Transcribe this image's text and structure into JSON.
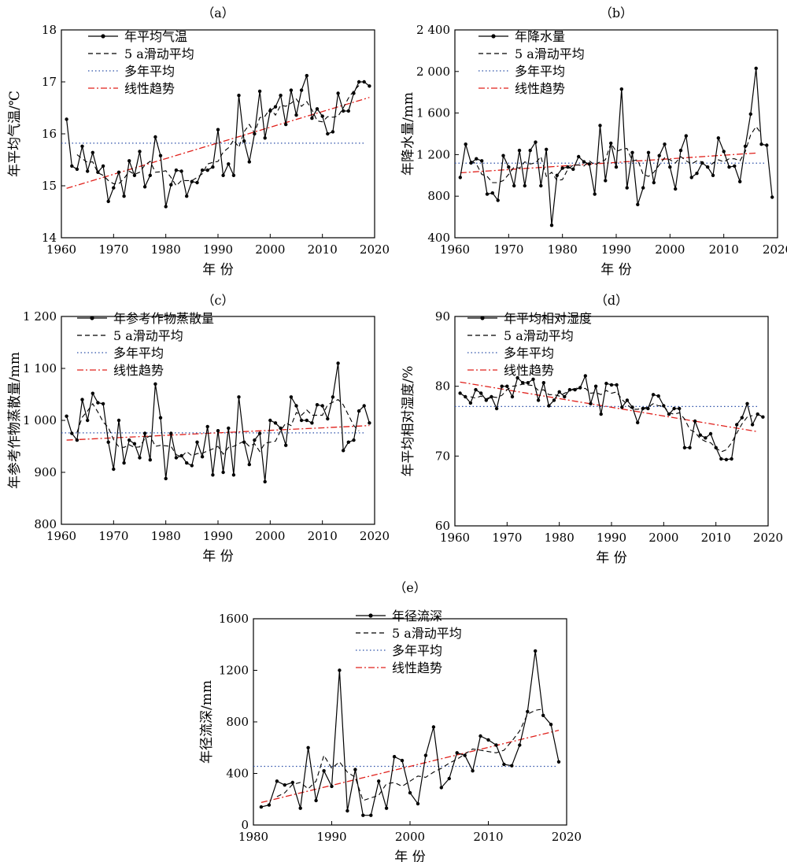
{
  "series_styles": {
    "observed": {
      "color": "#000000"
    },
    "moving": {
      "color": "#000000"
    },
    "mean": {
      "color": "#2b4fa8"
    },
    "trend": {
      "color": "#e0201b"
    }
  },
  "chart_data": [
    {
      "type": "line",
      "title": "（a）",
      "xlabel": "年 份",
      "ylabel": "年平均气温/℃",
      "xlim": [
        1960,
        2020
      ],
      "ylim": [
        14,
        18
      ],
      "xticks": [
        1960,
        1970,
        1980,
        1990,
        2000,
        2010,
        2020
      ],
      "yticks": [
        14,
        15,
        16,
        17,
        18
      ],
      "ytick_labels": [
        "14",
        "15",
        "16",
        "17",
        "18"
      ],
      "legend": [
        "年平均气温",
        "5 a滑动平均",
        "多年平均",
        "线性趋势"
      ],
      "x": [
        1961,
        1962,
        1963,
        1964,
        1965,
        1966,
        1967,
        1968,
        1969,
        1970,
        1971,
        1972,
        1973,
        1974,
        1975,
        1976,
        1977,
        1978,
        1979,
        1980,
        1981,
        1982,
        1983,
        1984,
        1985,
        1986,
        1987,
        1988,
        1989,
        1990,
        1991,
        1992,
        1993,
        1994,
        1995,
        1996,
        1997,
        1998,
        1999,
        2000,
        2001,
        2002,
        2003,
        2004,
        2005,
        2006,
        2007,
        2008,
        2009,
        2010,
        2011,
        2012,
        2013,
        2014,
        2015,
        2016,
        2017,
        2018,
        2019
      ],
      "values": [
        16.28,
        15.38,
        15.32,
        15.76,
        15.28,
        15.64,
        15.26,
        15.38,
        14.7,
        14.96,
        15.26,
        14.8,
        15.48,
        15.2,
        15.66,
        14.98,
        15.2,
        15.94,
        15.58,
        14.6,
        15.02,
        15.3,
        15.28,
        14.8,
        15.08,
        15.06,
        15.3,
        15.3,
        15.36,
        16.08,
        15.2,
        15.42,
        15.2,
        16.74,
        15.86,
        15.46,
        16.0,
        16.82,
        15.92,
        16.44,
        16.52,
        16.74,
        16.18,
        16.84,
        16.36,
        16.84,
        17.12,
        16.3,
        16.48,
        16.34,
        16.0,
        16.04,
        16.78,
        16.44,
        16.44,
        16.78,
        17.0,
        17.0,
        16.92
      ],
      "moving_x": [
        1963,
        1964,
        1965,
        1966,
        1967,
        1968,
        1969,
        1970,
        1971,
        1972,
        1973,
        1974,
        1975,
        1976,
        1977,
        1978,
        1979,
        1980,
        1981,
        1982,
        1983,
        1984,
        1985,
        1986,
        1987,
        1988,
        1989,
        1990,
        1991,
        1992,
        1993,
        1994,
        1995,
        1996,
        1997,
        1998,
        1999,
        2000,
        2001,
        2002,
        2003,
        2004,
        2005,
        2006,
        2007,
        2008,
        2009,
        2010,
        2011,
        2012,
        2013,
        2014,
        2015,
        2016,
        2017
      ],
      "moving_values": [
        15.6,
        15.52,
        15.45,
        15.46,
        15.25,
        15.2,
        15.1,
        15.04,
        15.04,
        15.14,
        15.28,
        15.22,
        15.26,
        15.4,
        15.47,
        15.26,
        15.27,
        15.29,
        15.16,
        15.0,
        15.1,
        15.1,
        15.1,
        15.16,
        15.23,
        15.42,
        15.45,
        15.47,
        15.65,
        15.73,
        15.88,
        15.74,
        16.04,
        16.18,
        16.02,
        16.31,
        16.34,
        16.49,
        16.36,
        16.55,
        16.53,
        16.59,
        16.67,
        16.53,
        16.62,
        16.46,
        16.25,
        16.23,
        16.33,
        16.32,
        16.34,
        16.5,
        16.69,
        16.83,
        16.93
      ],
      "mean": 15.82,
      "trend": [
        [
          1961,
          14.95
        ],
        [
          2019,
          16.7
        ]
      ]
    },
    {
      "type": "line",
      "title": "（b）",
      "xlabel": "年 份",
      "ylabel": "年降水量/mm",
      "xlim": [
        1960,
        2020
      ],
      "ylim": [
        400,
        2400
      ],
      "xticks": [
        1960,
        1970,
        1980,
        1990,
        2000,
        2010,
        2020
      ],
      "yticks": [
        400,
        800,
        1200,
        1600,
        2000,
        2400
      ],
      "ytick_labels": [
        "400",
        "800",
        "1 200",
        "1 600",
        "2 000",
        "2 400"
      ],
      "legend": [
        "年降水量",
        "5 a滑动平均",
        "多年平均",
        "线性趋势"
      ],
      "x": [
        1961,
        1962,
        1963,
        1964,
        1965,
        1966,
        1967,
        1968,
        1969,
        1970,
        1971,
        1972,
        1973,
        1974,
        1975,
        1976,
        1977,
        1978,
        1979,
        1980,
        1981,
        1982,
        1983,
        1984,
        1985,
        1986,
        1987,
        1988,
        1989,
        1990,
        1991,
        1992,
        1993,
        1994,
        1995,
        1996,
        1997,
        1998,
        1999,
        2000,
        2001,
        2002,
        2003,
        2004,
        2005,
        2006,
        2007,
        2008,
        2009,
        2010,
        2011,
        2012,
        2013,
        2014,
        2015,
        2016,
        2017,
        2018,
        2019
      ],
      "values": [
        980,
        1300,
        1120,
        1160,
        1140,
        820,
        830,
        760,
        1190,
        1080,
        900,
        1240,
        900,
        1240,
        1320,
        900,
        1250,
        520,
        1000,
        1070,
        1080,
        1060,
        1180,
        1130,
        1110,
        820,
        1480,
        950,
        1310,
        1080,
        1830,
        880,
        1220,
        720,
        880,
        1220,
        930,
        1190,
        1300,
        1080,
        870,
        1240,
        1380,
        980,
        1020,
        1120,
        1080,
        1000,
        1360,
        1230,
        1080,
        1090,
        940,
        1280,
        1590,
        2030,
        1300,
        1290,
        790
      ],
      "moving_x": [
        1963,
        1964,
        1965,
        1966,
        1967,
        1968,
        1969,
        1970,
        1971,
        1972,
        1973,
        1974,
        1975,
        1976,
        1977,
        1978,
        1979,
        1980,
        1981,
        1982,
        1983,
        1984,
        1985,
        1986,
        1987,
        1988,
        1989,
        1990,
        1991,
        1992,
        1993,
        1994,
        1995,
        1996,
        1997,
        1998,
        1999,
        2000,
        2001,
        2002,
        2003,
        2004,
        2005,
        2006,
        2007,
        2008,
        2009,
        2010,
        2011,
        2012,
        2013,
        2014,
        2015,
        2016,
        2017
      ],
      "moving_values": [
        1140,
        1110,
        1010,
        990,
        930,
        930,
        950,
        1010,
        1080,
        1070,
        1130,
        1110,
        1120,
        1180,
        990,
        1030,
        950,
        960,
        1060,
        1100,
        1100,
        1090,
        1140,
        1100,
        1130,
        1150,
        1310,
        1230,
        1250,
        1260,
        1140,
        1150,
        1010,
        990,
        1030,
        1100,
        1170,
        1150,
        1120,
        1180,
        1140,
        1110,
        1140,
        1130,
        1070,
        1120,
        1150,
        1130,
        1160,
        1160,
        1140,
        1230,
        1390,
        1470,
        1400
      ],
      "mean": 1118,
      "trend": [
        [
          1961,
          1025
        ],
        [
          2016,
          1215
        ]
      ]
    },
    {
      "type": "line",
      "title": "（c）",
      "xlabel": "年 份",
      "ylabel": "年参考作物蒸散量/mm",
      "xlim": [
        1960,
        2020
      ],
      "ylim": [
        800,
        1200
      ],
      "xticks": [
        1960,
        1970,
        1980,
        1990,
        2000,
        2010,
        2020
      ],
      "yticks": [
        800,
        900,
        1000,
        1100,
        1200
      ],
      "ytick_labels": [
        "800",
        "900",
        "1 000",
        "1 100",
        "1 200"
      ],
      "legend": [
        "年参考作物蒸散量",
        "5 a滑动平均",
        "多年平均",
        "线性趋势"
      ],
      "x": [
        1961,
        1962,
        1963,
        1964,
        1965,
        1966,
        1967,
        1968,
        1969,
        1970,
        1971,
        1972,
        1973,
        1974,
        1975,
        1976,
        1977,
        1978,
        1979,
        1980,
        1981,
        1982,
        1983,
        1984,
        1985,
        1986,
        1987,
        1988,
        1989,
        1990,
        1991,
        1992,
        1993,
        1994,
        1995,
        1996,
        1997,
        1998,
        1999,
        2000,
        2001,
        2002,
        2003,
        2004,
        2005,
        2006,
        2007,
        2008,
        2009,
        2010,
        2011,
        2012,
        2013,
        2014,
        2015,
        2016,
        2017,
        2018,
        2019
      ],
      "values": [
        1008,
        975,
        962,
        1040,
        1000,
        1052,
        1034,
        1032,
        958,
        906,
        1000,
        918,
        962,
        955,
        928,
        975,
        924,
        1070,
        1005,
        888,
        975,
        928,
        932,
        918,
        913,
        958,
        930,
        988,
        895,
        980,
        900,
        985,
        895,
        1045,
        958,
        915,
        962,
        975,
        882,
        1000,
        995,
        985,
        952,
        1045,
        1028,
        1000,
        1000,
        995,
        1030,
        1028,
        1003,
        1045,
        1110,
        942,
        958,
        962,
        1018,
        1028,
        995
      ],
      "moving_x": [
        1963,
        1964,
        1965,
        1966,
        1967,
        1968,
        1969,
        1970,
        1971,
        1972,
        1973,
        1974,
        1975,
        1976,
        1977,
        1978,
        1979,
        1980,
        1981,
        1982,
        1983,
        1984,
        1985,
        1986,
        1987,
        1988,
        1989,
        1990,
        1991,
        1992,
        1993,
        1994,
        1995,
        1996,
        1997,
        1998,
        1999,
        2000,
        2001,
        2002,
        2003,
        2004,
        2005,
        2006,
        2007,
        2008,
        2009,
        2010,
        2011,
        2012,
        2013,
        2014,
        2015,
        2016,
        2017
      ],
      "moving_values": [
        977,
        1006,
        1018,
        1032,
        1016,
        997,
        986,
        963,
        949,
        948,
        953,
        948,
        949,
        965,
        970,
        950,
        952,
        951,
        950,
        934,
        930,
        940,
        932,
        936,
        937,
        941,
        945,
        950,
        935,
        948,
        950,
        955,
        960,
        950,
        955,
        940,
        956,
        958,
        960,
        980,
        995,
        990,
        1015,
        1010,
        1020,
        1010,
        1010,
        1010,
        1030,
        1035,
        1040,
        1030,
        1010,
        990,
        980
      ],
      "mean": 976,
      "trend": [
        [
          1961,
          962
        ],
        [
          2019,
          990
        ]
      ]
    },
    {
      "type": "line",
      "title": "（d）",
      "xlabel": "年 份",
      "ylabel": "年平均相对湿度/%",
      "xlim": [
        1960,
        2020
      ],
      "ylim": [
        60,
        90
      ],
      "xticks": [
        1960,
        1970,
        1980,
        1990,
        2000,
        2010,
        2020
      ],
      "yticks": [
        60,
        70,
        80,
        90
      ],
      "ytick_labels": [
        "60",
        "70",
        "80",
        "90"
      ],
      "legend": [
        "年平均相对湿度",
        "5 a滑动平均",
        "多年平均",
        "线性趋势"
      ],
      "x": [
        1961,
        1962,
        1963,
        1964,
        1965,
        1966,
        1967,
        1968,
        1969,
        1970,
        1971,
        1972,
        1973,
        1974,
        1975,
        1976,
        1977,
        1978,
        1979,
        1980,
        1981,
        1982,
        1983,
        1984,
        1985,
        1986,
        1987,
        1988,
        1989,
        1990,
        1991,
        1992,
        1993,
        1994,
        1995,
        1996,
        1997,
        1998,
        1999,
        2000,
        2001,
        2002,
        2003,
        2004,
        2005,
        2006,
        2007,
        2008,
        2009,
        2010,
        2011,
        2012,
        2013,
        2014,
        2015,
        2016,
        2017,
        2018,
        2019
      ],
      "values": [
        79,
        78.5,
        77.6,
        79.5,
        79.0,
        78.0,
        78.5,
        76.8,
        80.0,
        80.0,
        78.5,
        81.2,
        80.5,
        80.5,
        81.0,
        78.0,
        80.5,
        77.2,
        78.0,
        79.2,
        78.5,
        79.5,
        79.5,
        79.8,
        81.5,
        77.5,
        80.0,
        76.0,
        80.4,
        80.2,
        80.2,
        77.0,
        78.0,
        77.0,
        74.8,
        76.8,
        76.8,
        78.8,
        78.6,
        77.2,
        76.0,
        76.8,
        76.8,
        71.2,
        71.2,
        75.0,
        73.0,
        72.6,
        73.2,
        71.2,
        69.6,
        69.5,
        69.6,
        74.5,
        75.5,
        77.5,
        74.5,
        76.0,
        75.6
      ],
      "moving_x": [
        1963,
        1964,
        1965,
        1966,
        1967,
        1968,
        1969,
        1970,
        1971,
        1972,
        1973,
        1974,
        1975,
        1976,
        1977,
        1978,
        1979,
        1980,
        1981,
        1982,
        1983,
        1984,
        1985,
        1986,
        1987,
        1988,
        1989,
        1990,
        1991,
        1992,
        1993,
        1994,
        1995,
        1996,
        1997,
        1998,
        1999,
        2000,
        2001,
        2002,
        2003,
        2004,
        2005,
        2006,
        2007,
        2008,
        2009,
        2010,
        2011,
        2012,
        2013,
        2014,
        2015,
        2016,
        2017
      ],
      "moving_values": [
        78.5,
        78.3,
        78.6,
        78.2,
        78.5,
        78.4,
        78.7,
        79.5,
        80.0,
        80.1,
        80.3,
        80.2,
        80.1,
        79.4,
        79.5,
        78.8,
        78.8,
        78.6,
        79.0,
        79.3,
        79.8,
        79.6,
        79.7,
        79.0,
        79.1,
        78.8,
        79.4,
        79.0,
        79.2,
        78.1,
        77.4,
        76.7,
        76.7,
        76.9,
        77.0,
        77.5,
        77.2,
        77.2,
        76.2,
        76.0,
        76.2,
        75.3,
        73.8,
        73.4,
        72.5,
        72.1,
        71.9,
        71.2,
        70.6,
        70.9,
        71.9,
        73.3,
        74.6,
        75.6,
        75.8
      ],
      "mean": 77.1,
      "trend": [
        [
          1961,
          80.6
        ],
        [
          2018,
          73.5
        ]
      ]
    },
    {
      "type": "line",
      "title": "（e）",
      "xlabel": "年 份",
      "ylabel": "年径流深/mm",
      "xlim": [
        1980,
        2020
      ],
      "ylim": [
        0,
        1600
      ],
      "xticks": [
        1980,
        1990,
        2000,
        2010,
        2020
      ],
      "yticks": [
        0,
        400,
        800,
        1200,
        1600
      ],
      "ytick_labels": [
        "0",
        "400",
        "800",
        "1200",
        "1600"
      ],
      "legend": [
        "年径流深",
        "5 a滑动平均",
        "多年平均",
        "线性趋势"
      ],
      "x": [
        1981,
        1982,
        1983,
        1984,
        1985,
        1986,
        1987,
        1988,
        1989,
        1990,
        1991,
        1992,
        1993,
        1994,
        1995,
        1996,
        1997,
        1998,
        1999,
        2000,
        2001,
        2002,
        2003,
        2004,
        2005,
        2006,
        2007,
        2008,
        2009,
        2010,
        2011,
        2012,
        2013,
        2014,
        2015,
        2016,
        2017,
        2018,
        2019
      ],
      "values": [
        140,
        155,
        340,
        310,
        330,
        130,
        600,
        190,
        420,
        300,
        1200,
        110,
        430,
        75,
        75,
        340,
        130,
        530,
        500,
        250,
        165,
        540,
        760,
        290,
        360,
        560,
        540,
        420,
        690,
        660,
        620,
        470,
        460,
        620,
        880,
        1350,
        850,
        780,
        490
      ],
      "moving_x": [
        1983,
        1984,
        1985,
        1986,
        1987,
        1988,
        1989,
        1990,
        1991,
        1992,
        1993,
        1994,
        1995,
        1996,
        1997,
        1998,
        1999,
        2000,
        2001,
        2002,
        2003,
        2004,
        2005,
        2006,
        2007,
        2008,
        2009,
        2010,
        2011,
        2012,
        2013,
        2014,
        2015,
        2016,
        2017
      ],
      "moving_values": [
        220,
        250,
        315,
        330,
        280,
        340,
        540,
        440,
        490,
        410,
        370,
        190,
        210,
        230,
        320,
        330,
        300,
        340,
        380,
        370,
        410,
        440,
        480,
        510,
        550,
        590,
        580,
        570,
        560,
        580,
        650,
        730,
        860,
        890,
        900
      ],
      "mean": 455,
      "trend": [
        [
          1981,
          175
        ],
        [
          2019,
          735
        ]
      ]
    }
  ]
}
